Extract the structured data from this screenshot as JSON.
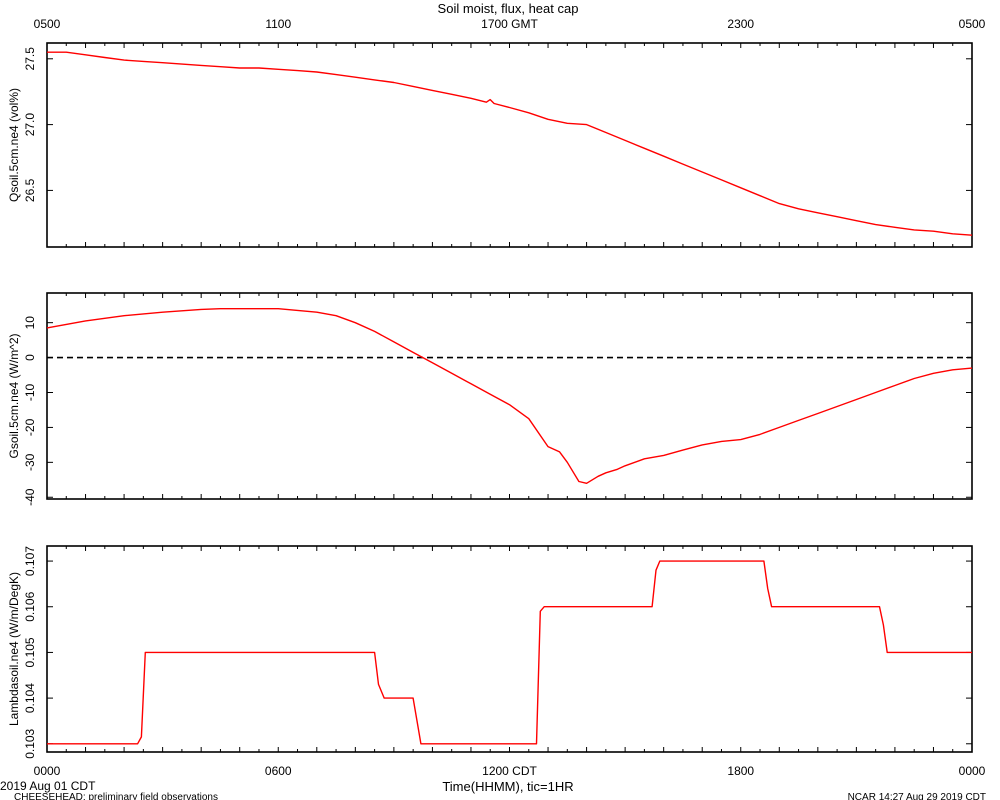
{
  "title": "Soil moist, flux, heat cap",
  "top_axis_labels": [
    "0500",
    "1100",
    "1700 GMT",
    "2300",
    "0500"
  ],
  "bottom_axis_labels": [
    "0000",
    "0600",
    "1200 CDT",
    "1800",
    "0000"
  ],
  "xlabel": "Time(HHMM), tic=1HR",
  "footer": {
    "left_date": "2019 Aug 01 CDT",
    "left_note": "CHEESEHEAD: preliminary field observations",
    "right_note": "NCAR 14:27 Aug 29 2019 CDT"
  },
  "colors": {
    "series": "#ff0000",
    "axes": "#000000"
  },
  "chart_data": [
    {
      "type": "line",
      "ylabel": "Qsoil.5cm.ne4 (vol%)",
      "xlim": [
        0,
        24
      ],
      "ylim": [
        26.07,
        27.62
      ],
      "yticks": [
        26.5,
        27.0,
        27.5
      ],
      "yticklabels": [
        "26.5",
        "27.0",
        "27.5"
      ],
      "grid": false,
      "series": [
        {
          "x": [
            0,
            0.5,
            1,
            1.5,
            2,
            2.5,
            3,
            3.5,
            4,
            4.5,
            5,
            5.5,
            6,
            6.5,
            7,
            7.5,
            8,
            8.5,
            9,
            9.5,
            10,
            10.5,
            11,
            11.4,
            11.5,
            11.6,
            12,
            12.5,
            13,
            13.5,
            14,
            14.5,
            15,
            15.5,
            16,
            16.5,
            17,
            17.5,
            18,
            18.5,
            19,
            19.5,
            20,
            20.5,
            21,
            21.5,
            22,
            22.5,
            23,
            23.5,
            24
          ],
          "y": [
            27.55,
            27.55,
            27.53,
            27.51,
            27.49,
            27.48,
            27.47,
            27.46,
            27.45,
            27.44,
            27.43,
            27.43,
            27.42,
            27.41,
            27.4,
            27.38,
            27.36,
            27.34,
            27.32,
            27.29,
            27.26,
            27.23,
            27.2,
            27.17,
            27.19,
            27.16,
            27.13,
            27.09,
            27.04,
            27.01,
            27.0,
            26.94,
            26.88,
            26.82,
            26.76,
            26.7,
            26.64,
            26.58,
            26.52,
            26.46,
            26.4,
            26.36,
            26.33,
            26.3,
            26.27,
            26.24,
            26.22,
            26.2,
            26.19,
            26.17,
            26.16
          ]
        }
      ]
    },
    {
      "type": "line",
      "ylabel": "Gsoil.5cm.ne4 (W/m^2)",
      "xlim": [
        0,
        24
      ],
      "ylim": [
        -40.5,
        18.5
      ],
      "yticks": [
        -40,
        -30,
        -20,
        -10,
        0,
        10
      ],
      "yticklabels": [
        "-40",
        "-30",
        "-20",
        "-10",
        "0",
        "10"
      ],
      "zero_line": 0,
      "grid": false,
      "series": [
        {
          "x": [
            0,
            1,
            2,
            3,
            4,
            4.5,
            5,
            6,
            7,
            7.5,
            8,
            8.5,
            9,
            9.5,
            10,
            10.5,
            11,
            11.5,
            12,
            12.5,
            13,
            13.3,
            13.5,
            13.8,
            14,
            14.3,
            14.5,
            14.8,
            15,
            15.5,
            16,
            16.5,
            17,
            17.5,
            18,
            18.5,
            19,
            19.5,
            20,
            20.5,
            21,
            21.5,
            22,
            22.5,
            23,
            23.5,
            24
          ],
          "y": [
            8.5,
            10.5,
            12,
            13,
            13.8,
            14,
            14,
            14,
            13,
            12,
            10,
            7.5,
            4.5,
            1.5,
            -1.5,
            -4.5,
            -7.5,
            -10.5,
            -13.5,
            -17.5,
            -25.5,
            -27,
            -30,
            -35.5,
            -36,
            -34,
            -33,
            -32,
            -31,
            -29,
            -28,
            -26.5,
            -25,
            -24,
            -23.5,
            -22,
            -20,
            -18,
            -16,
            -14,
            -12,
            -10,
            -8,
            -6,
            -4.5,
            -3.5,
            -3
          ]
        }
      ]
    },
    {
      "type": "line",
      "ylabel": "Lambdasoil.ne4 (W/m/DegK)",
      "xlim": [
        0,
        24
      ],
      "ylim": [
        0.10282,
        0.10733
      ],
      "yticks": [
        0.103,
        0.104,
        0.105,
        0.106,
        0.107
      ],
      "yticklabels": [
        "0.103",
        "0.104",
        "0.105",
        "0.106",
        "0.107"
      ],
      "grid": false,
      "series": [
        {
          "x": [
            0,
            2.35,
            2.45,
            2.55,
            8.5,
            8.6,
            8.75,
            9.5,
            9.6,
            9.7,
            12.7,
            12.8,
            12.9,
            15.7,
            15.8,
            15.9,
            18.6,
            18.7,
            18.8,
            21.6,
            21.7,
            21.8,
            24
          ],
          "y": [
            0.103,
            0.103,
            0.10315,
            0.105,
            0.105,
            0.1043,
            0.104,
            0.104,
            0.1035,
            0.103,
            0.103,
            0.1059,
            0.106,
            0.106,
            0.1068,
            0.107,
            0.107,
            0.1064,
            0.106,
            0.106,
            0.1056,
            0.105,
            0.105
          ]
        }
      ]
    }
  ]
}
